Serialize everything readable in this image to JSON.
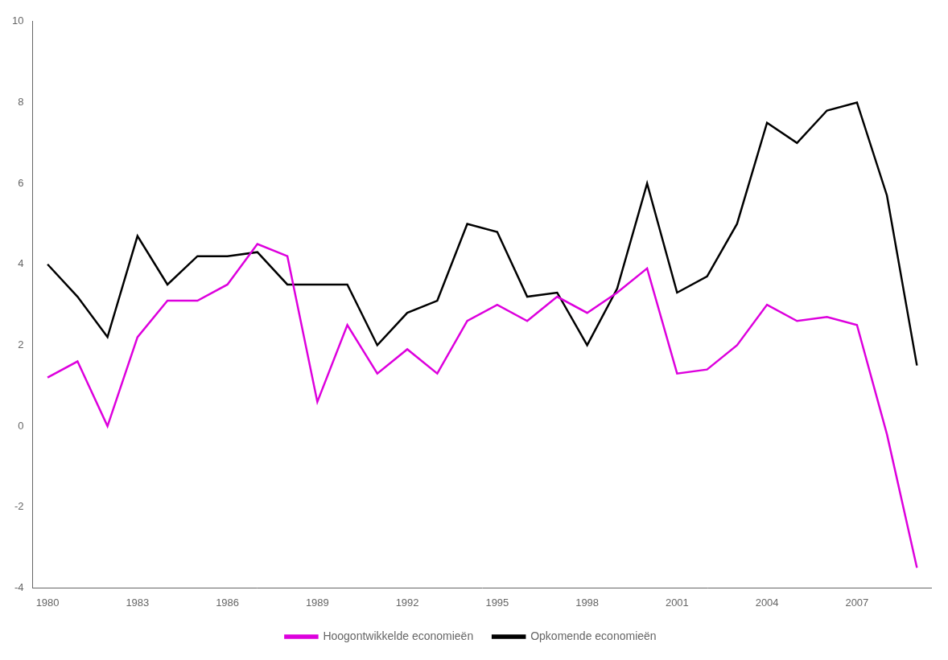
{
  "chart_data": {
    "type": "line",
    "x": [
      1980,
      1981,
      1982,
      1983,
      1984,
      1985,
      1986,
      1987,
      1988,
      1989,
      1990,
      1991,
      1992,
      1993,
      1994,
      1995,
      1996,
      1997,
      1998,
      1999,
      2000,
      2001,
      2002,
      2003,
      2004,
      2005,
      2006,
      2007,
      2008,
      2009
    ],
    "series": [
      {
        "name": "Hoogontwikkelde economieën",
        "color": "#dd00dd",
        "values": [
          1.2,
          1.6,
          0.0,
          2.2,
          3.1,
          3.1,
          3.5,
          4.5,
          4.2,
          0.6,
          2.5,
          1.3,
          1.9,
          1.3,
          2.6,
          3.0,
          2.6,
          3.2,
          2.8,
          3.3,
          3.9,
          1.3,
          1.4,
          2.0,
          3.0,
          2.6,
          2.7,
          2.5,
          -0.2,
          -3.5
        ]
      },
      {
        "name": "Opkomende economieën",
        "color": "#000000",
        "values": [
          4.0,
          3.2,
          2.2,
          4.7,
          3.5,
          4.2,
          4.2,
          4.3,
          3.5,
          3.5,
          3.5,
          2.0,
          2.8,
          3.1,
          5.0,
          4.8,
          3.2,
          3.3,
          2.0,
          3.4,
          6.0,
          3.3,
          3.7,
          5.0,
          7.5,
          7.0,
          7.8,
          8.0,
          5.7,
          1.5
        ]
      }
    ],
    "xlim": [
      1979.5,
      2009.5
    ],
    "xticks": [
      1980,
      1983,
      1986,
      1989,
      1992,
      1995,
      1998,
      2001,
      2004,
      2007
    ],
    "ylim": [
      -4,
      10
    ],
    "yticks": [
      -4,
      -2,
      0,
      2,
      4,
      6,
      8,
      10
    ],
    "grid": false,
    "legend": "bottom"
  }
}
